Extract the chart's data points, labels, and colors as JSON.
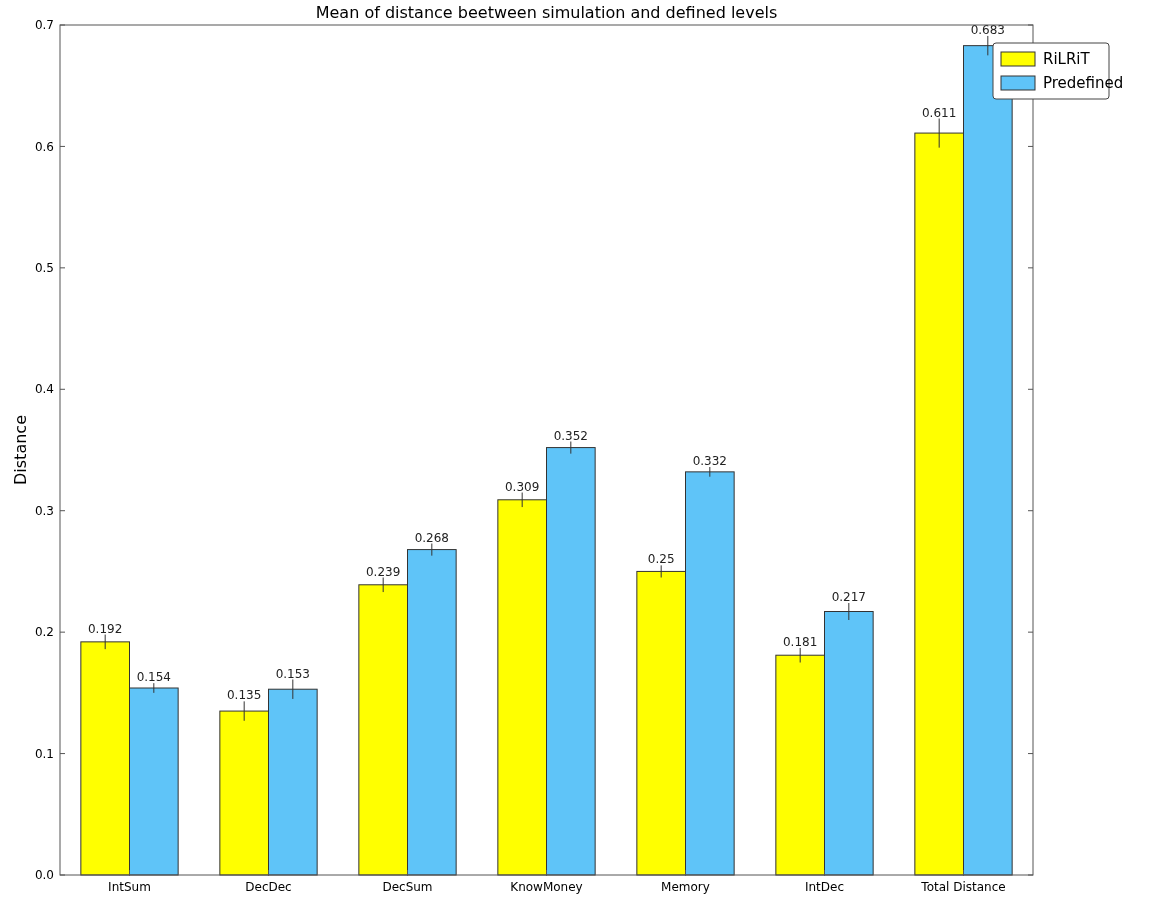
{
  "chart_data": {
    "type": "bar",
    "title": "Mean of distance beetween simulation and defined levels",
    "ylabel": "Distance",
    "categories": [
      "IntSum",
      "DecDec",
      "DecSum",
      "KnowMoney",
      "Memory",
      "IntDec",
      "Total Distance"
    ],
    "series": [
      {
        "name": "RiLRiT",
        "color": "#ffff00",
        "values": [
          0.192,
          0.135,
          0.239,
          0.309,
          0.25,
          0.181,
          0.611
        ],
        "errors": [
          0.006,
          0.008,
          0.006,
          0.006,
          0.005,
          0.006,
          0.012
        ]
      },
      {
        "name": "Predefined",
        "color": "#5fc4f8",
        "values": [
          0.154,
          0.153,
          0.268,
          0.352,
          0.332,
          0.217,
          0.683
        ],
        "errors": [
          0.004,
          0.008,
          0.005,
          0.005,
          0.004,
          0.007,
          0.008
        ]
      }
    ],
    "ylim": [
      0,
      0.7
    ],
    "yticks": [
      {
        "value": 0,
        "label": "0.0"
      },
      {
        "value": 0.1,
        "label": "0.1"
      },
      {
        "value": 0.2,
        "label": "0.2"
      },
      {
        "value": 0.3,
        "label": "0.3"
      },
      {
        "value": 0.4,
        "label": "0.4"
      },
      {
        "value": 0.5,
        "label": "0.5"
      },
      {
        "value": 0.6,
        "label": "0.6"
      },
      {
        "value": 0.7,
        "label": "0.7"
      }
    ],
    "data_labels": true,
    "legend": "top right",
    "grid": false
  }
}
